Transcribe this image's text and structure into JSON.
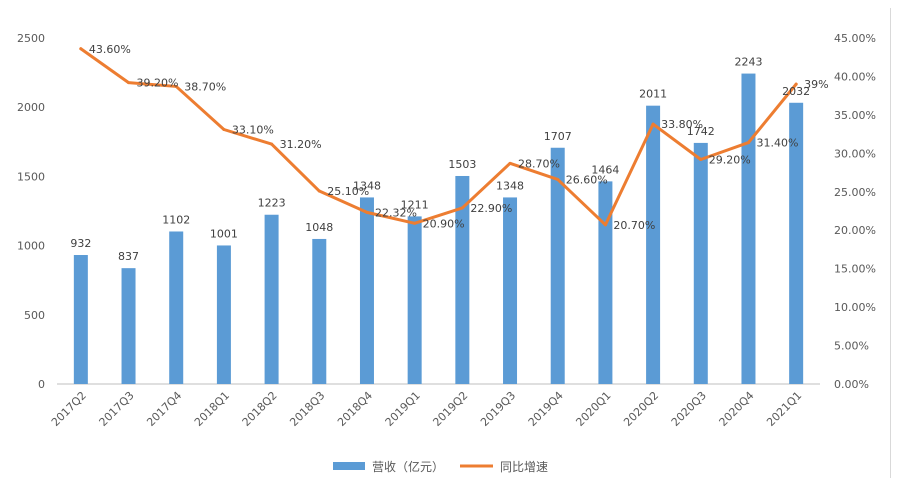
{
  "chart_data": {
    "type": "bar",
    "categories": [
      "2017Q2",
      "2017Q3",
      "2017Q4",
      "2018Q1",
      "2018Q2",
      "2018Q3",
      "2018Q4",
      "2019Q1",
      "2019Q2",
      "2019Q3",
      "2019Q4",
      "2020Q1",
      "2020Q2",
      "2020Q3",
      "2020Q4",
      "2021Q1"
    ],
    "series": [
      {
        "name": "营收（亿元）",
        "kind": "bar",
        "axis": "left",
        "color": "#5b9bd5",
        "values": [
          932,
          837,
          1102,
          1001,
          1223,
          1048,
          1348,
          1211,
          1503,
          1348,
          1707,
          1464,
          2011,
          1742,
          2243,
          2032
        ],
        "labels": [
          "932",
          "837",
          "1102",
          "1001",
          "1223",
          "1048",
          "1348",
          "1211",
          "1503",
          "1348",
          "1707",
          "1464",
          "2011",
          "1742",
          "2243",
          "2032"
        ]
      },
      {
        "name": "同比增速",
        "kind": "line",
        "axis": "right",
        "color": "#ed7d31",
        "values": [
          43.6,
          39.2,
          38.7,
          33.1,
          31.2,
          25.1,
          22.32,
          20.9,
          22.9,
          28.7,
          26.6,
          20.7,
          33.8,
          29.2,
          31.4,
          39
        ],
        "labels": [
          "43.60%",
          "39.20%",
          "38.70%",
          "33.10%",
          "31.20%",
          "25.10%",
          "22.32%",
          "20.90%",
          "22.90%",
          "28.70%",
          "26.60%",
          "20.70%",
          "33.80%",
          "29.20%",
          "31.40%",
          "39%"
        ]
      }
    ],
    "left_axis": {
      "ylim": [
        0,
        2500
      ],
      "ticks": [
        "0",
        "500",
        "1000",
        "1500",
        "2000",
        "2500"
      ]
    },
    "right_axis": {
      "ylim": [
        0,
        45
      ],
      "ticks": [
        "0.00%",
        "5.00%",
        "10.00%",
        "15.00%",
        "20.00%",
        "25.00%",
        "30.00%",
        "35.00%",
        "40.00%",
        "45.00%"
      ]
    },
    "grid": false,
    "legend_position": "bottom"
  }
}
